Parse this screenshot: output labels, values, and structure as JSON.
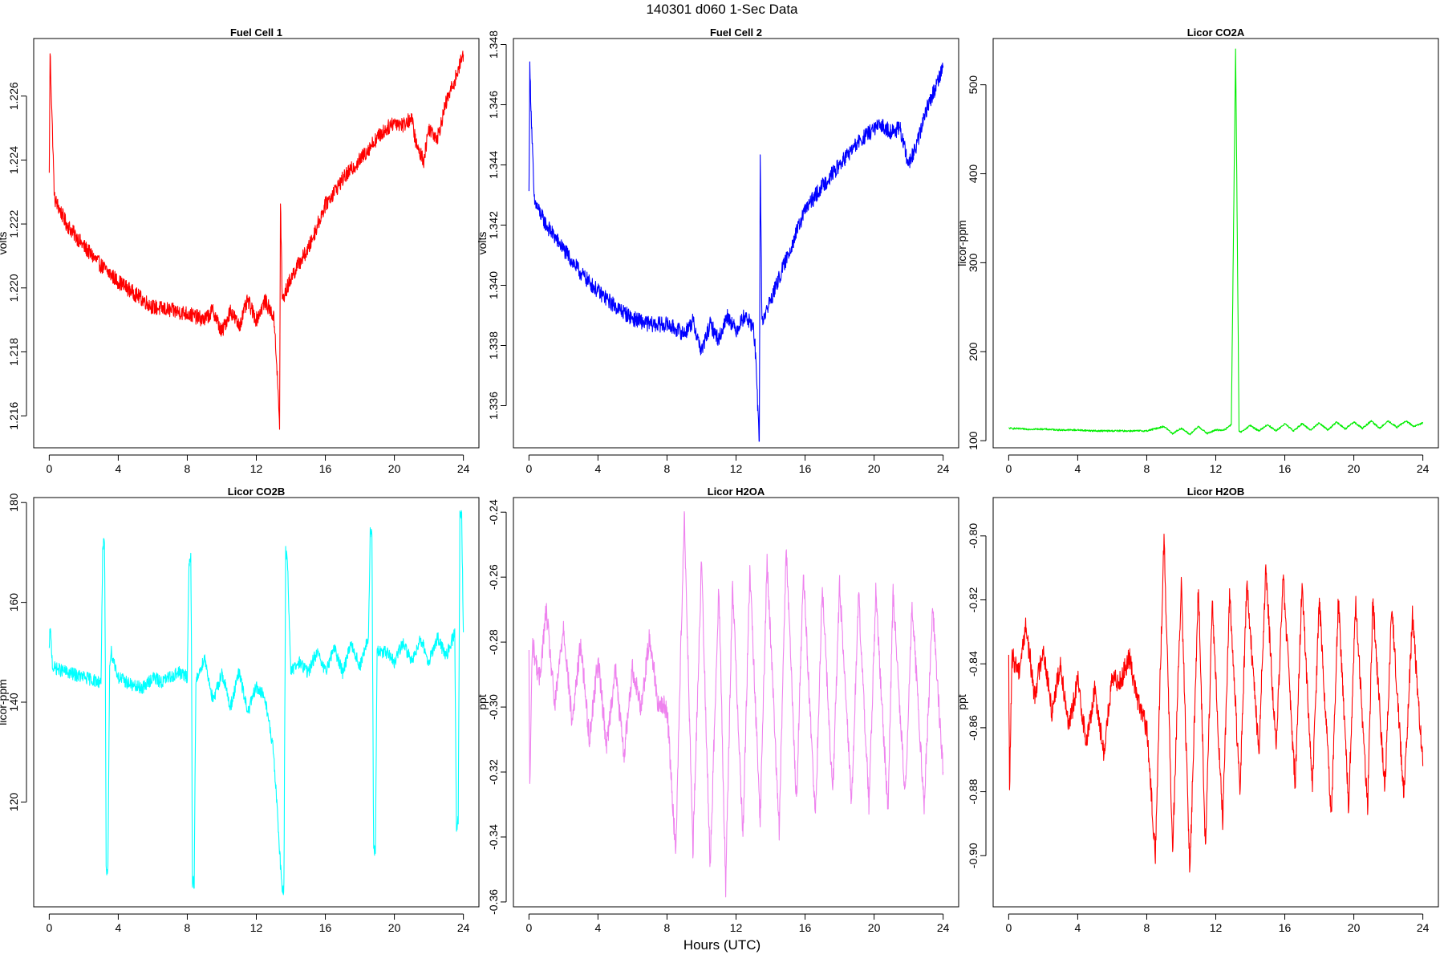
{
  "title": "140301    d060    1-Sec Data",
  "xlabel": "Hours (UTC)",
  "chart_data": [
    {
      "type": "line",
      "title": "Fuel Cell 1",
      "ylabel": "volts",
      "color": "#ff0000",
      "xlim": [
        -0.9,
        24.9
      ],
      "ylim": [
        1.215,
        1.2278
      ],
      "x_ticks": [
        0,
        4,
        8,
        12,
        16,
        20,
        24
      ],
      "y_ticks": [
        1.216,
        1.218,
        1.22,
        1.222,
        1.224,
        1.226
      ],
      "x": [
        0,
        0.05,
        0.3,
        1,
        2,
        3,
        4,
        5,
        6,
        7,
        8,
        9,
        9.5,
        10,
        10.5,
        11,
        11.5,
        12,
        12.5,
        13,
        13.1,
        13.35,
        13.4,
        13.5,
        14,
        14.5,
        15,
        16,
        17,
        18,
        19,
        20,
        20.5,
        21,
        21.3,
        21.7,
        22,
        22.5,
        23,
        23.5,
        24
      ],
      "y": [
        1.2235,
        1.2274,
        1.2228,
        1.222,
        1.2213,
        1.2207,
        1.2202,
        1.2198,
        1.2194,
        1.2193,
        1.2192,
        1.219,
        1.2193,
        1.2186,
        1.2193,
        1.2188,
        1.2196,
        1.219,
        1.2196,
        1.2191,
        1.2185,
        1.2157,
        1.2228,
        1.2196,
        1.2203,
        1.2208,
        1.2212,
        1.2226,
        1.2234,
        1.224,
        1.2247,
        1.2252,
        1.2251,
        1.2253,
        1.2244,
        1.224,
        1.225,
        1.2247,
        1.2258,
        1.2265,
        1.2273
      ],
      "noise": 0.00024
    },
    {
      "type": "line",
      "title": "Fuel Cell 2",
      "ylabel": "volts",
      "color": "#0000ff",
      "xlim": [
        -0.9,
        24.9
      ],
      "ylim": [
        1.3346,
        1.3482
      ],
      "x_ticks": [
        0,
        4,
        8,
        12,
        16,
        20,
        24
      ],
      "y_ticks": [
        1.336,
        1.338,
        1.34,
        1.342,
        1.344,
        1.346,
        1.348
      ],
      "x": [
        0,
        0.05,
        0.3,
        1,
        2,
        3,
        4,
        5,
        6,
        7,
        8,
        9,
        9.5,
        10,
        10.5,
        11,
        11.5,
        12,
        12.5,
        13,
        13.1,
        13.35,
        13.4,
        13.5,
        14,
        15,
        16,
        17,
        18,
        19,
        20,
        20.5,
        21,
        21.5,
        22,
        22.5,
        23,
        23.5,
        24
      ],
      "y": [
        1.343,
        1.3472,
        1.3428,
        1.342,
        1.3412,
        1.3404,
        1.3398,
        1.3393,
        1.3389,
        1.3387,
        1.3387,
        1.3384,
        1.3388,
        1.3378,
        1.3387,
        1.3382,
        1.339,
        1.3385,
        1.339,
        1.3386,
        1.338,
        1.3348,
        1.3444,
        1.3388,
        1.3395,
        1.341,
        1.3425,
        1.3433,
        1.344,
        1.3447,
        1.3452,
        1.3453,
        1.3451,
        1.3452,
        1.344,
        1.3447,
        1.3458,
        1.3465,
        1.3473
      ],
      "noise": 0.00026
    },
    {
      "type": "line",
      "title": "Licor CO2A",
      "ylabel": "licor-ppm",
      "color": "#00ee00",
      "xlim": [
        -0.9,
        24.9
      ],
      "ylim": [
        92,
        552
      ],
      "x_ticks": [
        0,
        4,
        8,
        12,
        16,
        20,
        24
      ],
      "y_ticks": [
        100,
        200,
        300,
        400,
        500
      ],
      "x": [
        0,
        1,
        2,
        3,
        4,
        5,
        6,
        7,
        8,
        9,
        9.5,
        10,
        10.5,
        11,
        11.5,
        12,
        12.5,
        12.9,
        13.15,
        13.35,
        13.5,
        14,
        14.5,
        15,
        15.5,
        16,
        16.5,
        17,
        17.5,
        18,
        18.5,
        19,
        19.5,
        20,
        20.5,
        21,
        21.5,
        22,
        22.5,
        23,
        23.5,
        24
      ],
      "y": [
        114,
        113,
        113,
        112,
        112,
        111,
        111,
        111,
        111,
        116,
        108,
        114,
        107,
        116,
        108,
        112,
        112,
        118,
        540,
        110,
        110,
        117,
        111,
        118,
        111,
        119,
        111,
        119,
        112,
        120,
        112,
        121,
        113,
        121,
        114,
        122,
        114,
        122,
        115,
        122,
        116,
        120
      ],
      "noise": 1.0
    },
    {
      "type": "line",
      "title": "Licor CO2B",
      "ylabel": "licor-ppm",
      "color": "#00ffff",
      "xlim": [
        -0.9,
        24.9
      ],
      "ylim": [
        99,
        181
      ],
      "x_ticks": [
        0,
        4,
        8,
        12,
        16,
        20,
        24
      ],
      "y_ticks": [
        120,
        140,
        160,
        180
      ],
      "x": [
        0,
        0.05,
        0.2,
        1,
        2,
        3,
        3.1,
        3.2,
        3.25,
        3.3,
        3.4,
        3.5,
        3.6,
        4,
        4.5,
        5,
        5.5,
        6,
        6.5,
        7,
        7.5,
        8,
        8.1,
        8.2,
        8.25,
        8.3,
        8.4,
        8.5,
        9,
        9.5,
        10,
        10.5,
        11,
        11.5,
        12,
        12.5,
        13,
        13.5,
        13.6,
        13.7,
        13.8,
        14,
        14.5,
        15,
        15.5,
        16,
        16.5,
        17,
        17.5,
        18,
        18.5,
        18.6,
        18.7,
        18.8,
        18.9,
        19,
        19.5,
        20,
        20.5,
        21,
        21.5,
        22,
        22.5,
        23,
        23.5,
        23.6,
        23.7,
        23.8,
        23.9,
        24
      ],
      "y": [
        150,
        155,
        147,
        146,
        145,
        144,
        171,
        172,
        148,
        106,
        106,
        148,
        150,
        145,
        144,
        143,
        143,
        145,
        144,
        145,
        146,
        145,
        168,
        169,
        148,
        104,
        104,
        144,
        149,
        140,
        146,
        139,
        146,
        138,
        143,
        141,
        130,
        102,
        103,
        170,
        169,
        146,
        148,
        146,
        150,
        146,
        151,
        146,
        152,
        147,
        153,
        174,
        173,
        110,
        111,
        150,
        150,
        148,
        152,
        148,
        153,
        148,
        153,
        149,
        154,
        115,
        116,
        178,
        177,
        154
      ],
      "noise": 1.3
    },
    {
      "type": "line",
      "title": "Licor H2OA",
      "ylabel": "ppt",
      "color": "#ee82ee",
      "xlim": [
        -0.9,
        24.9
      ],
      "ylim": [
        -0.3615,
        -0.2355
      ],
      "x_ticks": [
        0,
        4,
        8,
        12,
        16,
        20,
        24
      ],
      "y_ticks": [
        -0.36,
        -0.34,
        -0.32,
        -0.3,
        -0.28,
        -0.26,
        -0.24
      ],
      "x": [
        0,
        0.05,
        0.2,
        0.6,
        1.0,
        1.5,
        2.0,
        2.5,
        3.0,
        3.5,
        4.0,
        4.5,
        5.0,
        5.5,
        6.0,
        6.5,
        7.0,
        7.5,
        8.0,
        8.5,
        9.0,
        9.5,
        10.0,
        10.5,
        11.0,
        11.4,
        11.8,
        12.4,
        12.8,
        13.4,
        13.8,
        14.5,
        14.9,
        15.5,
        15.9,
        16.6,
        17.0,
        17.6,
        18.0,
        18.7,
        19.1,
        19.7,
        20.1,
        20.8,
        21.1,
        21.8,
        22.2,
        22.9,
        23.4,
        24.0
      ],
      "y": [
        -0.285,
        -0.325,
        -0.28,
        -0.292,
        -0.27,
        -0.3,
        -0.275,
        -0.305,
        -0.28,
        -0.31,
        -0.285,
        -0.312,
        -0.288,
        -0.315,
        -0.288,
        -0.3,
        -0.278,
        -0.3,
        -0.3,
        -0.345,
        -0.24,
        -0.345,
        -0.255,
        -0.35,
        -0.262,
        -0.355,
        -0.262,
        -0.34,
        -0.258,
        -0.335,
        -0.255,
        -0.338,
        -0.25,
        -0.33,
        -0.258,
        -0.335,
        -0.262,
        -0.328,
        -0.262,
        -0.33,
        -0.265,
        -0.33,
        -0.265,
        -0.332,
        -0.265,
        -0.328,
        -0.268,
        -0.33,
        -0.27,
        -0.32
      ],
      "noise": 0.0035
    },
    {
      "type": "line",
      "title": "Licor H2OB",
      "ylabel": "ppt",
      "color": "#ff0000",
      "xlim": [
        -0.9,
        24.9
      ],
      "ylim": [
        -0.916,
        -0.788
      ],
      "x_ticks": [
        0,
        4,
        8,
        12,
        16,
        20,
        24
      ],
      "y_ticks": [
        -0.9,
        -0.88,
        -0.86,
        -0.84,
        -0.82,
        -0.8
      ],
      "x": [
        0,
        0.05,
        0.2,
        0.6,
        1.0,
        1.5,
        2.0,
        2.5,
        3.0,
        3.5,
        4.0,
        4.5,
        5.0,
        5.5,
        6.0,
        6.5,
        7.0,
        7.5,
        8.0,
        8.5,
        9.0,
        9.5,
        10.0,
        10.5,
        11.0,
        11.4,
        11.8,
        12.4,
        12.8,
        13.4,
        13.8,
        14.5,
        14.9,
        15.5,
        15.9,
        16.6,
        17.0,
        17.6,
        18.0,
        18.7,
        19.1,
        19.7,
        20.1,
        20.8,
        21.1,
        21.8,
        22.2,
        22.9,
        23.4,
        24.0
      ],
      "y": [
        -0.84,
        -0.878,
        -0.838,
        -0.842,
        -0.828,
        -0.85,
        -0.835,
        -0.855,
        -0.84,
        -0.86,
        -0.845,
        -0.865,
        -0.848,
        -0.868,
        -0.845,
        -0.845,
        -0.838,
        -0.852,
        -0.86,
        -0.9,
        -0.8,
        -0.898,
        -0.815,
        -0.905,
        -0.815,
        -0.898,
        -0.822,
        -0.89,
        -0.818,
        -0.88,
        -0.815,
        -0.868,
        -0.81,
        -0.868,
        -0.812,
        -0.878,
        -0.815,
        -0.88,
        -0.82,
        -0.888,
        -0.82,
        -0.885,
        -0.82,
        -0.885,
        -0.82,
        -0.88,
        -0.822,
        -0.882,
        -0.825,
        -0.872
      ],
      "noise": 0.0035
    }
  ]
}
